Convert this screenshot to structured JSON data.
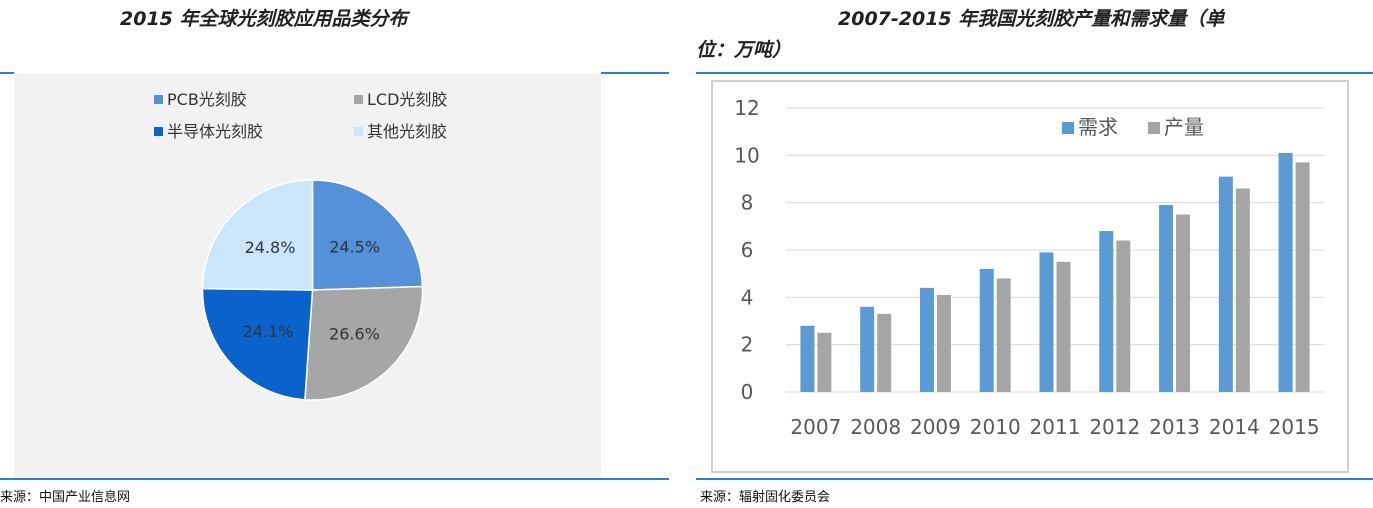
{
  "left": {
    "title": "2015 年全球光刻胶应用品类分布",
    "source": "来源：中国产业信息网"
  },
  "right": {
    "title_line1": "2007-2015 年我国光刻胶产量和需求量（单",
    "title_line2": "位：万吨）",
    "source": "来源：辐射固化委员会"
  },
  "colors": {
    "pcb": "#5591d8",
    "lcd": "#a6a6a6",
    "semi": "#0a62cc",
    "other": "#c9e6fb",
    "demand": "#5b9bd5",
    "production": "#a5a5a5",
    "rule": "#2a7fd4"
  },
  "chart_data": [
    {
      "type": "pie",
      "title": "2015 年全球光刻胶应用品类分布",
      "legend": [
        {
          "name": "PCB光刻胶",
          "color": "#5591d8"
        },
        {
          "name": "LCD光刻胶",
          "color": "#a6a6a6"
        },
        {
          "name": "半导体光刻胶",
          "color": "#0a62cc"
        },
        {
          "name": "其他光刻胶",
          "color": "#c9e6fb"
        }
      ],
      "slices": [
        {
          "name": "PCB光刻胶",
          "value": 24.5,
          "label": "24.5%"
        },
        {
          "name": "LCD光刻胶",
          "value": 26.6,
          "label": "26.6%"
        },
        {
          "name": "半导体光刻胶",
          "value": 24.1,
          "label": "24.1%"
        },
        {
          "name": "其他光刻胶",
          "value": 24.8,
          "label": "24.8%"
        }
      ]
    },
    {
      "type": "bar",
      "title": "2007-2015 年我国光刻胶产量和需求量（单位：万吨）",
      "categories": [
        "2007",
        "2008",
        "2009",
        "2010",
        "2011",
        "2012",
        "2013",
        "2014",
        "2015"
      ],
      "series": [
        {
          "name": "需求",
          "color": "#5b9bd5",
          "values": [
            2.8,
            3.6,
            4.4,
            5.2,
            5.9,
            6.8,
            7.9,
            9.1,
            10.1
          ]
        },
        {
          "name": "产量",
          "color": "#a5a5a5",
          "values": [
            2.5,
            3.3,
            4.1,
            4.8,
            5.5,
            6.4,
            7.5,
            8.6,
            9.7
          ]
        }
      ],
      "ylim": [
        0,
        12
      ],
      "yticks": [
        "0",
        "2",
        "4",
        "6",
        "8",
        "10",
        "12"
      ],
      "grid": true,
      "legend_position": "top-right"
    }
  ]
}
